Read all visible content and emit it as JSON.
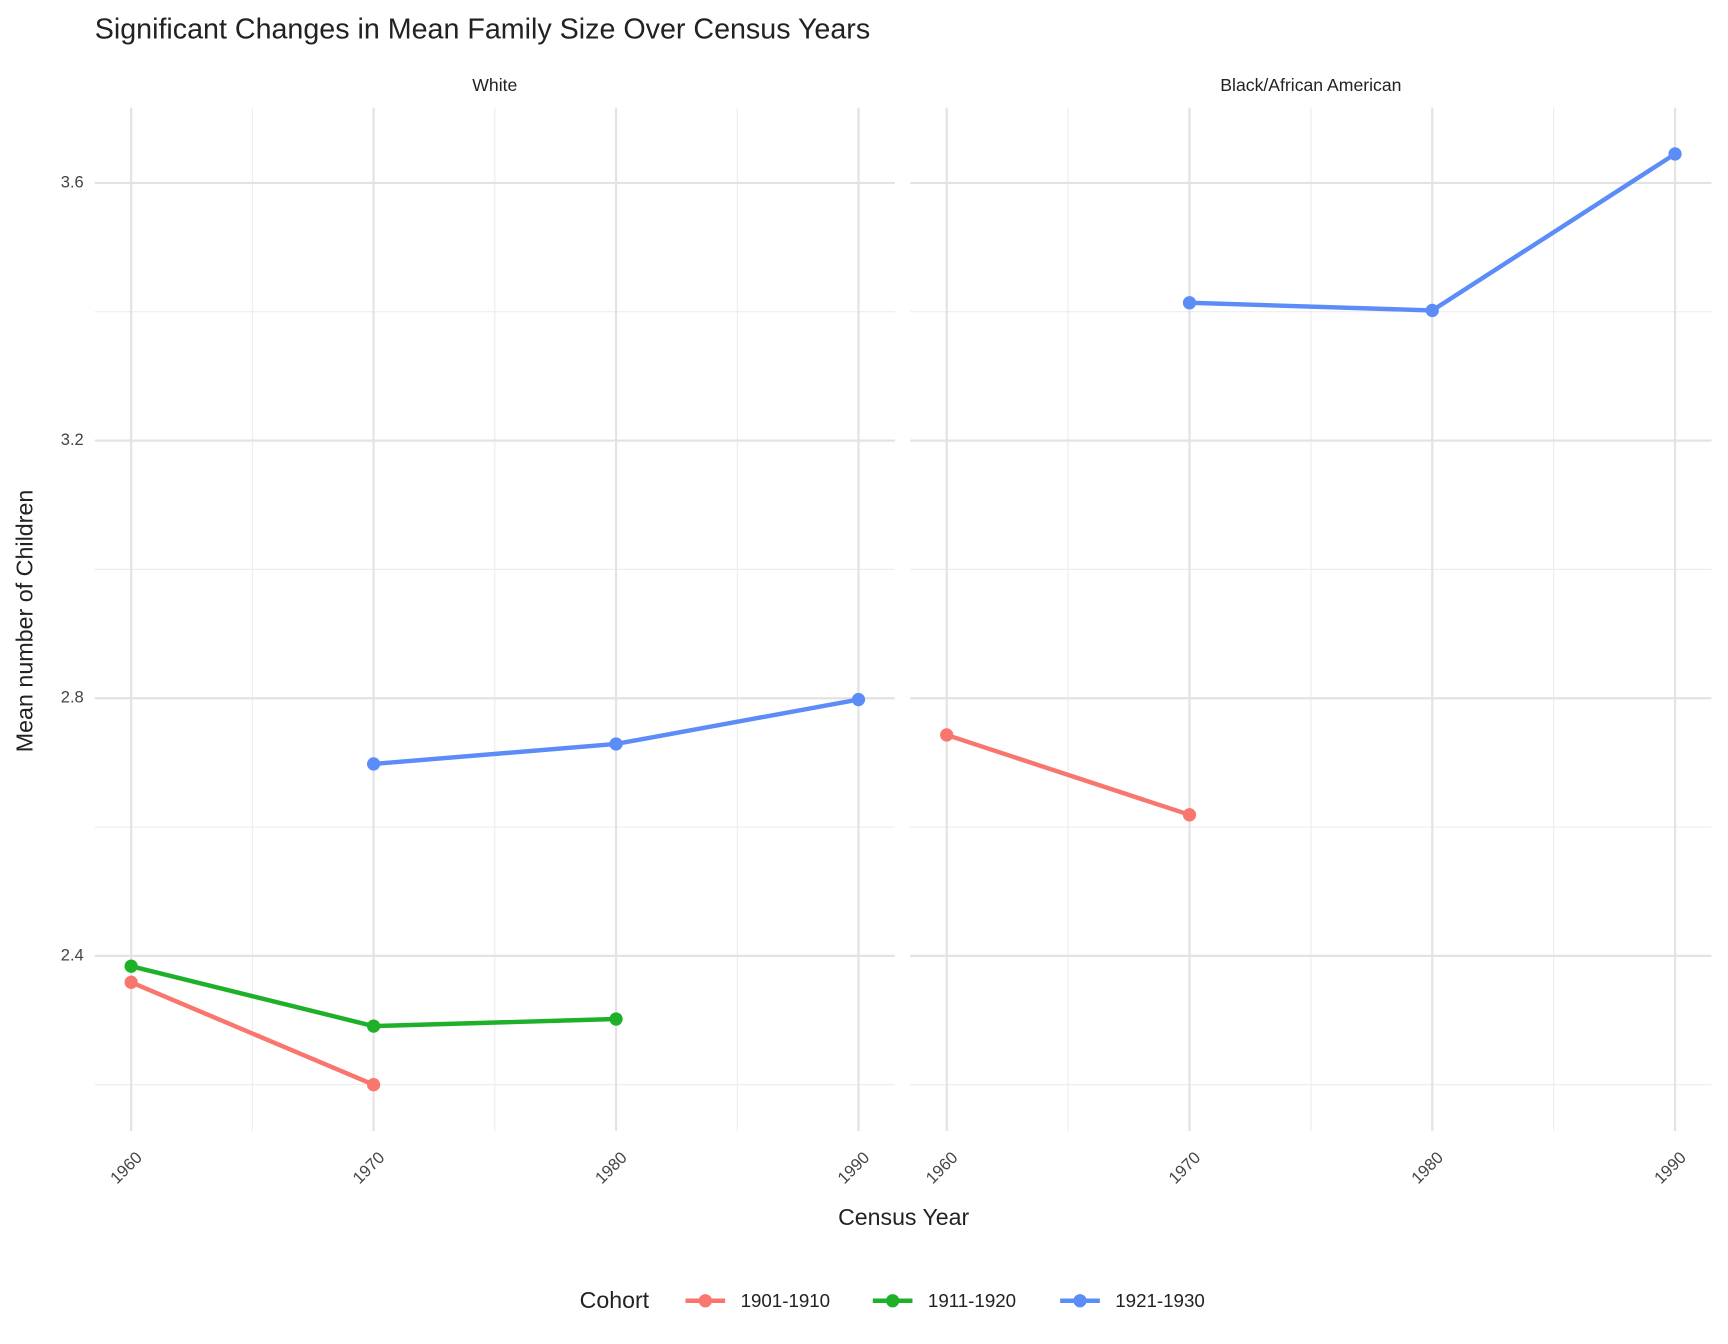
{
  "chart_data": {
    "type": "line",
    "title": "Significant Changes in Mean Family Size Over Census Years",
    "x_label": "Census Year",
    "y_label": "Mean number of Children",
    "legend_title": "Cohort",
    "x": [
      1960,
      1970,
      1980,
      1990
    ],
    "xlim": [
      1958.5,
      1991.5
    ],
    "xticks": [
      1960,
      1970,
      1980,
      1990
    ],
    "ylim": [
      2.128,
      3.717
    ],
    "yticks": [
      2.4,
      2.8,
      3.2,
      3.6
    ],
    "grid": true,
    "legend_position": "bottom",
    "series": [
      {
        "name": "1901-1910",
        "color": "#f8766d"
      },
      {
        "name": "1911-1920",
        "color": "#1fb02a"
      },
      {
        "name": "1921-1930",
        "color": "#5b8cf7"
      }
    ],
    "facets": [
      {
        "title": "White",
        "values": [
          [
            2.359,
            2.2,
            null,
            null
          ],
          [
            2.384,
            2.291,
            2.302,
            null
          ],
          [
            null,
            2.698,
            2.729,
            2.798
          ]
        ]
      },
      {
        "title": "Black/African American",
        "values": [
          [
            2.743,
            2.619,
            null,
            null
          ],
          [
            null,
            null,
            null,
            null
          ],
          [
            null,
            3.414,
            3.402,
            3.645
          ]
        ]
      }
    ]
  }
}
